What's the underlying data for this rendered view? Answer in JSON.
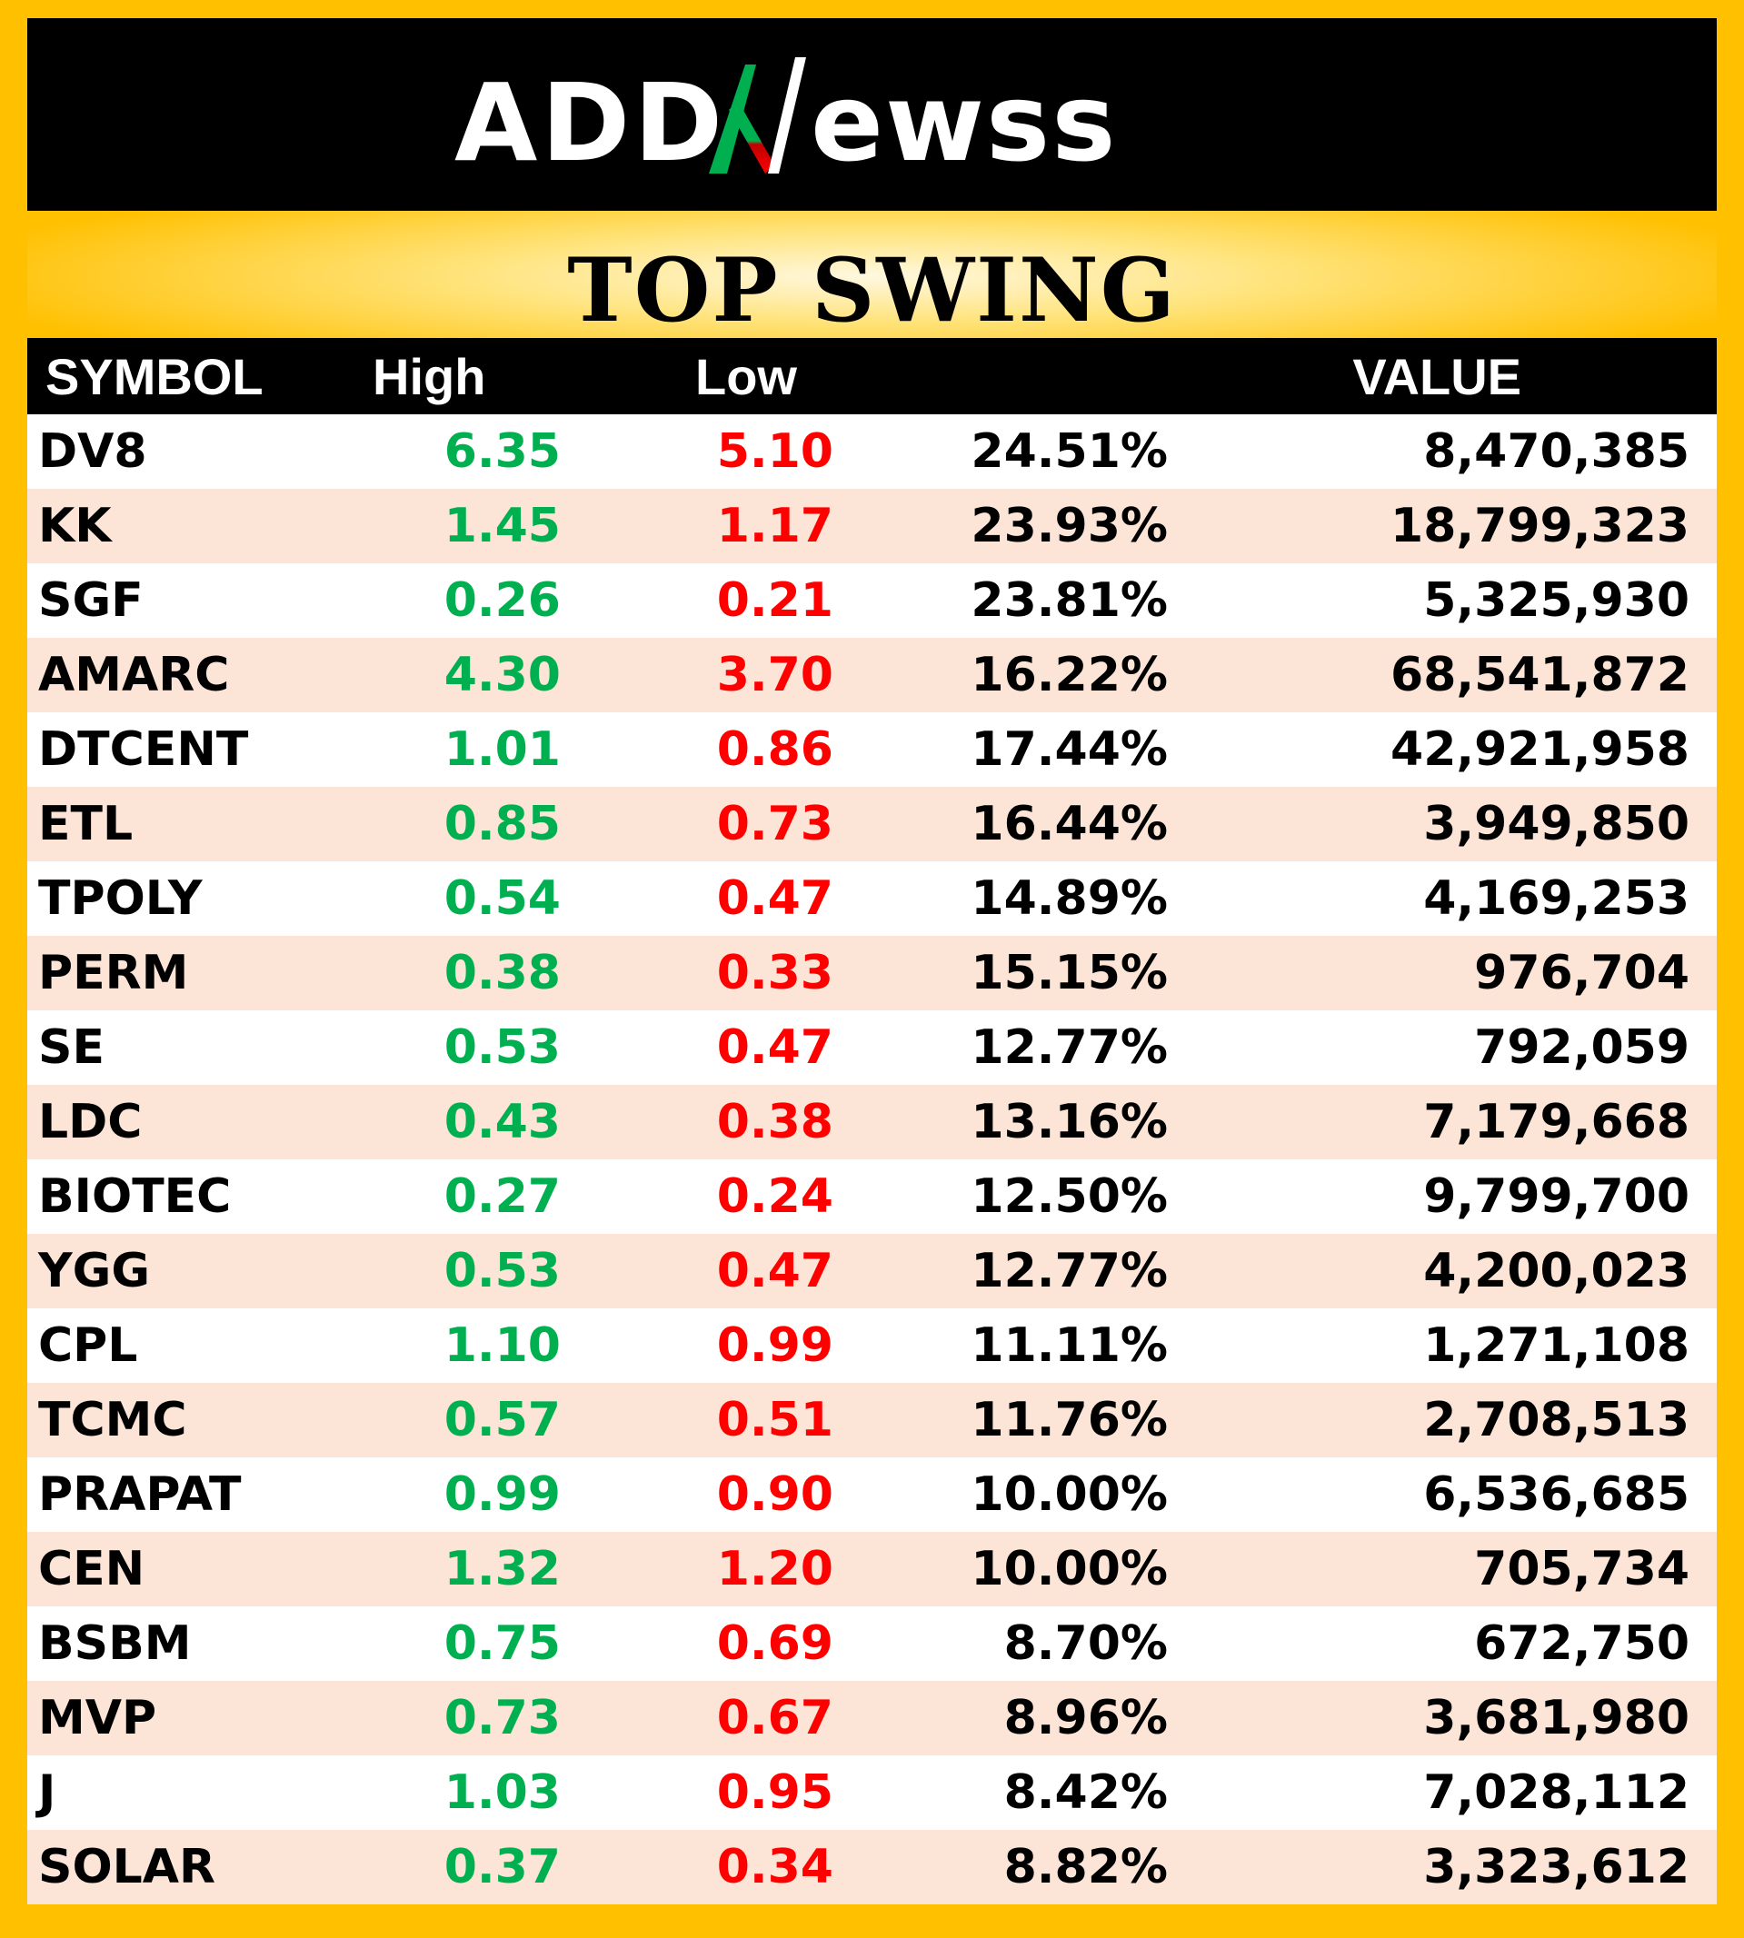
{
  "brand": {
    "name": "ADDNEWSS",
    "colors": {
      "text": "#ffffff",
      "accent_green": "#00b050",
      "accent_red": "#ff0000"
    }
  },
  "title": "TOP SWING",
  "colors": {
    "background": "#ffc000",
    "banner": "#000000",
    "row_alt": "#fce4d6",
    "high": "#00b050",
    "low": "#ff0000"
  },
  "table": {
    "headers": [
      "SYMBOL",
      "High",
      "Low",
      "",
      "VALUE"
    ],
    "rows": [
      {
        "symbol": "DV8",
        "high": "6.35",
        "low": "5.10",
        "pct": "24.51%",
        "value": "8,470,385"
      },
      {
        "symbol": "KK",
        "high": "1.45",
        "low": "1.17",
        "pct": "23.93%",
        "value": "18,799,323"
      },
      {
        "symbol": "SGF",
        "high": "0.26",
        "low": "0.21",
        "pct": "23.81%",
        "value": "5,325,930"
      },
      {
        "symbol": "AMARC",
        "high": "4.30",
        "low": "3.70",
        "pct": "16.22%",
        "value": "68,541,872"
      },
      {
        "symbol": "DTCENT",
        "high": "1.01",
        "low": "0.86",
        "pct": "17.44%",
        "value": "42,921,958"
      },
      {
        "symbol": "ETL",
        "high": "0.85",
        "low": "0.73",
        "pct": "16.44%",
        "value": "3,949,850"
      },
      {
        "symbol": "TPOLY",
        "high": "0.54",
        "low": "0.47",
        "pct": "14.89%",
        "value": "4,169,253"
      },
      {
        "symbol": "PERM",
        "high": "0.38",
        "low": "0.33",
        "pct": "15.15%",
        "value": "976,704"
      },
      {
        "symbol": "SE",
        "high": "0.53",
        "low": "0.47",
        "pct": "12.77%",
        "value": "792,059"
      },
      {
        "symbol": "LDC",
        "high": "0.43",
        "low": "0.38",
        "pct": "13.16%",
        "value": "7,179,668"
      },
      {
        "symbol": "BIOTEC",
        "high": "0.27",
        "low": "0.24",
        "pct": "12.50%",
        "value": "9,799,700"
      },
      {
        "symbol": "YGG",
        "high": "0.53",
        "low": "0.47",
        "pct": "12.77%",
        "value": "4,200,023"
      },
      {
        "symbol": "CPL",
        "high": "1.10",
        "low": "0.99",
        "pct": "11.11%",
        "value": "1,271,108"
      },
      {
        "symbol": "TCMC",
        "high": "0.57",
        "low": "0.51",
        "pct": "11.76%",
        "value": "2,708,513"
      },
      {
        "symbol": "PRAPAT",
        "high": "0.99",
        "low": "0.90",
        "pct": "10.00%",
        "value": "6,536,685"
      },
      {
        "symbol": "CEN",
        "high": "1.32",
        "low": "1.20",
        "pct": "10.00%",
        "value": "705,734"
      },
      {
        "symbol": "BSBM",
        "high": "0.75",
        "low": "0.69",
        "pct": "8.70%",
        "value": "672,750"
      },
      {
        "symbol": "MVP",
        "high": "0.73",
        "low": "0.67",
        "pct": "8.96%",
        "value": "3,681,980"
      },
      {
        "symbol": "J",
        "high": "1.03",
        "low": "0.95",
        "pct": "8.42%",
        "value": "7,028,112"
      },
      {
        "symbol": "SOLAR",
        "high": "0.37",
        "low": "0.34",
        "pct": "8.82%",
        "value": "3,323,612"
      }
    ]
  }
}
